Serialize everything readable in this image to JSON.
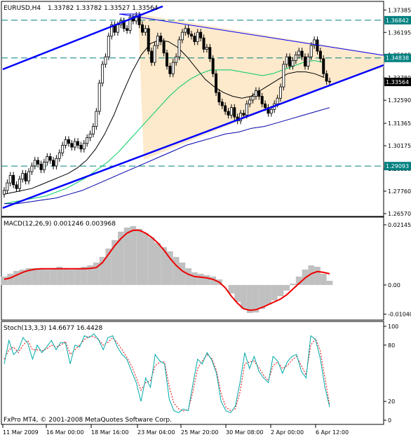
{
  "chart_data": [
    {
      "type": "candlestick",
      "symbol_label": "EURUSD,H4",
      "ohlc_label": "1.33782 1.33782 1.33527 1.33564",
      "ylim": [
        1.2657,
        1.3773
      ],
      "y_ticks": [
        "1.37385",
        "1.36195",
        "1.35005",
        "1.33780",
        "1.32590",
        "1.31365",
        "1.30175",
        "1.28950",
        "1.27760",
        "1.26570"
      ],
      "price_tags": [
        {
          "label": "1.36842",
          "value": 1.36842,
          "color": "#008080"
        },
        {
          "label": "1.34838",
          "value": 1.34838,
          "color": "#008080"
        },
        {
          "label": "1.33564",
          "value": 1.33564,
          "color": "#000000"
        },
        {
          "label": "1.29093",
          "value": 1.29093,
          "color": "#008080"
        }
      ],
      "colors": {
        "trend": "#0000ff",
        "triangle_fill": "#fde9cc",
        "ma_black": "#000000",
        "ma_green": "#00cc66",
        "ma_blue": "#0000aa",
        "dashed": "#008080"
      },
      "closes": [
        1.278,
        1.282,
        1.286,
        1.281,
        1.279,
        1.284,
        1.287,
        1.283,
        1.288,
        1.291,
        1.294,
        1.292,
        1.289,
        1.293,
        1.296,
        1.294,
        1.291,
        1.295,
        1.298,
        1.302,
        1.305,
        1.303,
        1.301,
        1.304,
        1.302,
        1.3,
        1.303,
        1.306,
        1.308,
        1.312,
        1.32,
        1.335,
        1.345,
        1.349,
        1.36,
        1.366,
        1.362,
        1.366,
        1.368,
        1.364,
        1.363,
        1.37,
        1.368,
        1.371,
        1.366,
        1.362,
        1.364,
        1.352,
        1.346,
        1.355,
        1.36,
        1.357,
        1.351,
        1.344,
        1.34,
        1.346,
        1.349,
        1.358,
        1.362,
        1.364,
        1.361,
        1.36,
        1.357,
        1.362,
        1.359,
        1.353,
        1.354,
        1.348,
        1.34,
        1.33,
        1.325,
        1.323,
        1.32,
        1.318,
        1.322,
        1.317,
        1.315,
        1.319,
        1.318,
        1.324,
        1.326,
        1.328,
        1.331,
        1.328,
        1.324,
        1.322,
        1.319,
        1.321,
        1.324,
        1.327,
        1.333,
        1.345,
        1.349,
        1.344,
        1.347,
        1.35,
        1.352,
        1.349,
        1.344,
        1.349,
        1.355,
        1.358,
        1.352,
        1.348,
        1.34,
        1.336,
        1.3356
      ],
      "ma_black": [
        1.276,
        1.277,
        1.278,
        1.279,
        1.281,
        1.283,
        1.285,
        1.287,
        1.29,
        1.294,
        1.3,
        1.308,
        1.318,
        1.33,
        1.341,
        1.35,
        1.356,
        1.358,
        1.357,
        1.354,
        1.349,
        1.343,
        1.337,
        1.333,
        1.33,
        1.328,
        1.327,
        1.328,
        1.331,
        1.334,
        1.337,
        1.34,
        1.341,
        1.341,
        1.34,
        1.338
      ],
      "ma_green": [
        1.271,
        1.272,
        1.273,
        1.274,
        1.275,
        1.277,
        1.279,
        1.282,
        1.285,
        1.289,
        1.293,
        1.298,
        1.304,
        1.31,
        1.316,
        1.322,
        1.328,
        1.333,
        1.337,
        1.34,
        1.342,
        1.342,
        1.342,
        1.341,
        1.34,
        1.339,
        1.34,
        1.342,
        1.344,
        1.346,
        1.347,
        1.346
      ],
      "ma_blue": [
        1.271,
        1.271,
        1.272,
        1.273,
        1.274,
        1.276,
        1.278,
        1.281,
        1.284,
        1.287,
        1.29,
        1.293,
        1.296,
        1.299,
        1.302,
        1.304,
        1.306,
        1.308,
        1.309,
        1.311,
        1.312,
        1.314,
        1.316,
        1.318,
        1.32,
        1.322
      ]
    },
    {
      "type": "bar",
      "label": "MACD(12,26,9) 0.001246 0.003968",
      "y_ticks": [
        "0.021454",
        "0.00",
        "-0.010404"
      ],
      "ylim": [
        -0.0115,
        0.0222
      ],
      "histogram_color": "#c0c0c0",
      "signal_color": "#ee0000",
      "histogram": [
        0.003,
        0.004,
        0.005,
        0.0055,
        0.006,
        0.006,
        0.0058,
        0.0055,
        0.006,
        0.0065,
        0.006,
        0.0055,
        0.006,
        0.0065,
        0.007,
        0.008,
        0.01,
        0.013,
        0.016,
        0.019,
        0.0205,
        0.021,
        0.02,
        0.0185,
        0.017,
        0.015,
        0.0135,
        0.012,
        0.01,
        0.008,
        0.006,
        0.0045,
        0.004,
        0.0035,
        0.003,
        0.002,
        0.0,
        -0.003,
        -0.006,
        -0.0085,
        -0.01,
        -0.0098,
        -0.0085,
        -0.007,
        -0.0055,
        -0.004,
        -0.002,
        0.0005,
        0.003,
        0.0055,
        0.007,
        0.0065,
        0.004,
        0.0015
      ],
      "signal": [
        0.002,
        0.0025,
        0.0035,
        0.0045,
        0.0052,
        0.0056,
        0.0058,
        0.0058,
        0.0058,
        0.0058,
        0.0058,
        0.0058,
        0.0058,
        0.0058,
        0.0059,
        0.0062,
        0.008,
        0.011,
        0.014,
        0.0165,
        0.0185,
        0.0195,
        0.0195,
        0.0185,
        0.017,
        0.015,
        0.0125,
        0.0095,
        0.007,
        0.005,
        0.0038,
        0.003,
        0.0028,
        0.0025,
        0.002,
        0.001,
        -0.001,
        -0.004,
        -0.0065,
        -0.0085,
        -0.009,
        -0.0088,
        -0.008,
        -0.007,
        -0.006,
        -0.005,
        -0.0035,
        -0.0015,
        0.0005,
        0.0025,
        0.004,
        0.0048,
        0.0045,
        0.004
      ]
    },
    {
      "type": "line",
      "label": "Stoch(13,3,3) 14.6677 16.4428",
      "y_ticks": [
        "100",
        "80",
        "20",
        "0"
      ],
      "ylim": [
        0,
        100
      ],
      "main_color": "#00aaaa",
      "signal_color": "#ee0000",
      "main": [
        60,
        85,
        70,
        75,
        88,
        82,
        65,
        80,
        72,
        78,
        85,
        75,
        83,
        82,
        60,
        80,
        78,
        90,
        88,
        92,
        86,
        75,
        88,
        90,
        78,
        70,
        65,
        52,
        40,
        20,
        45,
        35,
        70,
        63,
        60,
        22,
        10,
        8,
        12,
        10,
        38,
        65,
        60,
        72,
        64,
        50,
        20,
        10,
        8,
        15,
        40,
        72,
        55,
        68,
        52,
        45,
        40,
        68,
        63,
        50,
        62,
        68,
        70,
        52,
        45,
        90,
        86,
        66,
        35,
        14
      ],
      "signal": [
        65,
        75,
        78,
        72,
        80,
        85,
        75,
        75,
        74,
        76,
        80,
        78,
        80,
        84,
        70,
        75,
        80,
        86,
        89,
        89,
        86,
        80,
        83,
        88,
        82,
        75,
        67,
        58,
        45,
        32,
        40,
        42,
        58,
        62,
        62,
        35,
        18,
        12,
        10,
        11,
        30,
        55,
        63,
        70,
        66,
        53,
        28,
        14,
        10,
        12,
        30,
        60,
        62,
        63,
        56,
        48,
        42,
        58,
        62,
        55,
        58,
        64,
        68,
        58,
        48,
        80,
        87,
        74,
        45,
        16
      ]
    }
  ],
  "x_labels": [
    "11 Mar 2009",
    "16 Mar 00:00",
    "18 Mar 16:00",
    "23 Mar 04:00",
    "25 Mar 20:00",
    "30 Mar 08:00",
    "2 Apr 00:00",
    "6 Apr 12:00"
  ],
  "copyright": "FxPro MT4, © 2001-2008 MetaQuotes Software Corp."
}
